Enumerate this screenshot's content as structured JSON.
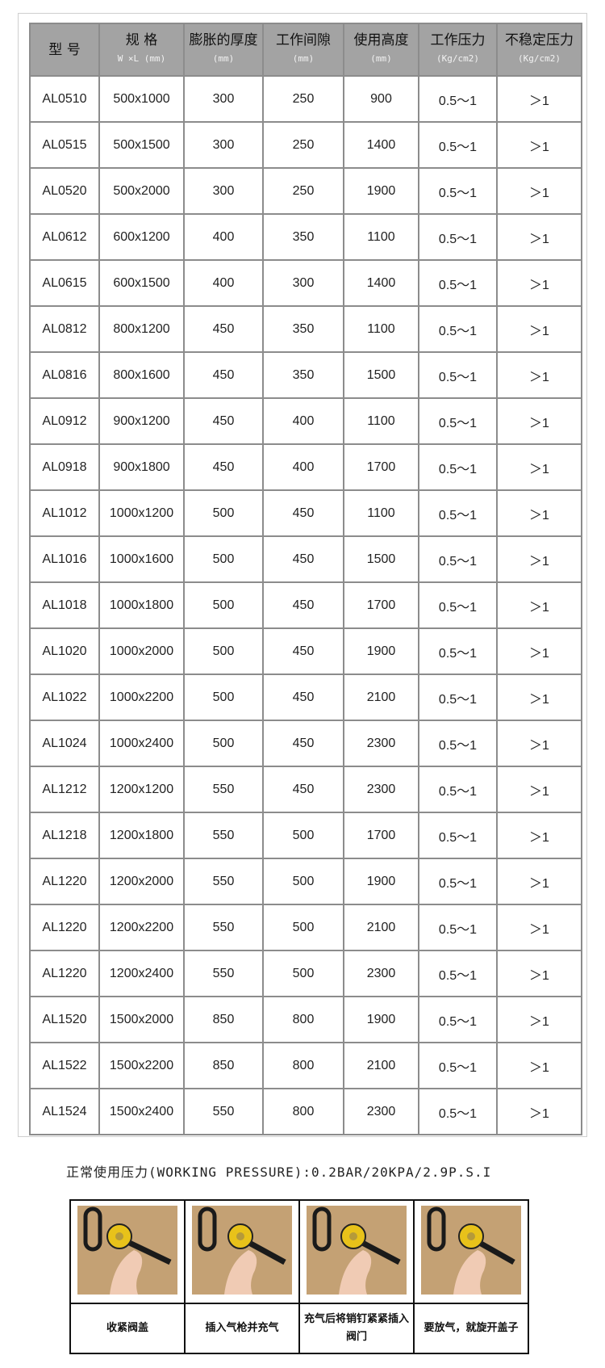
{
  "table": {
    "headers": [
      {
        "title": "型 号",
        "unit": ""
      },
      {
        "title": "规 格",
        "unit": "W ×L (mm)"
      },
      {
        "title": "膨胀的厚度",
        "unit": "(mm)"
      },
      {
        "title": "工作间隙",
        "unit": "(mm)"
      },
      {
        "title": "使用高度",
        "unit": "(mm)"
      },
      {
        "title": "工作压力",
        "unit": "(Kg/cm2)"
      },
      {
        "title": "不稳定压力",
        "unit": "(Kg/cm2)"
      }
    ],
    "rows": [
      [
        "AL0510",
        "500x1000",
        "300",
        "250",
        "900",
        "0.5～1",
        "＞1"
      ],
      [
        "AL0515",
        "500x1500",
        "300",
        "250",
        "1400",
        "0.5～1",
        "＞1"
      ],
      [
        "AL0520",
        "500x2000",
        "300",
        "250",
        "1900",
        "0.5～1",
        "＞1"
      ],
      [
        "AL0612",
        "600x1200",
        "400",
        "350",
        "1100",
        "0.5～1",
        "＞1"
      ],
      [
        "AL0615",
        "600x1500",
        "400",
        "300",
        "1400",
        "0.5～1",
        "＞1"
      ],
      [
        "AL0812",
        "800x1200",
        "450",
        "350",
        "1100",
        "0.5～1",
        "＞1"
      ],
      [
        "AL0816",
        "800x1600",
        "450",
        "350",
        "1500",
        "0.5～1",
        "＞1"
      ],
      [
        "AL0912",
        "900x1200",
        "450",
        "400",
        "1100",
        "0.5～1",
        "＞1"
      ],
      [
        "AL0918",
        "900x1800",
        "450",
        "400",
        "1700",
        "0.5～1",
        "＞1"
      ],
      [
        "AL1012",
        "1000x1200",
        "500",
        "450",
        "1100",
        "0.5～1",
        "＞1"
      ],
      [
        "AL1016",
        "1000x1600",
        "500",
        "450",
        "1500",
        "0.5～1",
        "＞1"
      ],
      [
        "AL1018",
        "1000x1800",
        "500",
        "450",
        "1700",
        "0.5～1",
        "＞1"
      ],
      [
        "AL1020",
        "1000x2000",
        "500",
        "450",
        "1900",
        "0.5～1",
        "＞1"
      ],
      [
        "AL1022",
        "1000x2200",
        "500",
        "450",
        "2100",
        "0.5～1",
        "＞1"
      ],
      [
        "AL1024",
        "1000x2400",
        "500",
        "450",
        "2300",
        "0.5～1",
        "＞1"
      ],
      [
        "AL1212",
        "1200x1200",
        "550",
        "450",
        "2300",
        "0.5～1",
        "＞1"
      ],
      [
        "AL1218",
        "1200x1800",
        "550",
        "500",
        "1700",
        "0.5～1",
        "＞1"
      ],
      [
        "AL1220",
        "1200x2000",
        "550",
        "500",
        "1900",
        "0.5～1",
        "＞1"
      ],
      [
        "AL1220",
        "1200x2200",
        "550",
        "500",
        "2100",
        "0.5～1",
        "＞1"
      ],
      [
        "AL1220",
        "1200x2400",
        "550",
        "500",
        "2300",
        "0.5～1",
        "＞1"
      ],
      [
        "AL1520",
        "1500x2000",
        "850",
        "800",
        "1900",
        "0.5～1",
        "＞1"
      ],
      [
        "AL1522",
        "1500x2200",
        "850",
        "800",
        "2100",
        "0.5～1",
        "＞1"
      ],
      [
        "AL1524",
        "1500x2400",
        "550",
        "800",
        "2300",
        "0.5～1",
        "＞1"
      ]
    ]
  },
  "note": "正常使用压力(WORKING PRESSURE):0.2BAR/20KPA/2.9P.S.I",
  "steps": [
    {
      "caption": "收紧阀盖",
      "photo": "valve-cap-photo"
    },
    {
      "caption": "插入气枪并充气",
      "photo": "air-gun-insert-photo"
    },
    {
      "caption": "充气后将销钉紧紧插入阀门",
      "photo": "pin-insert-photo"
    },
    {
      "caption": "要放气，就旋开盖子",
      "photo": "unscrew-cap-photo"
    }
  ],
  "colors": {
    "header_bg": "#a3a3a3",
    "border": "#8c8c8c",
    "paper": "#c4a174",
    "valve_yellow": "#e8c21a"
  }
}
